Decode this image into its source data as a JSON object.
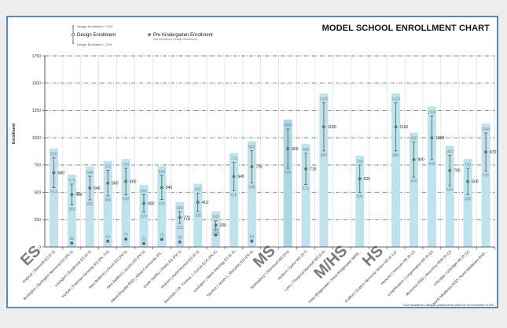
{
  "chart_data": {
    "type": "bar",
    "title": "MODEL SCHOOL ENROLLMENT CHART",
    "ylabel": "Enrollment",
    "xlabel": "",
    "ylim": [
      0,
      1750
    ],
    "yticks": [
      0,
      250,
      500,
      750,
      1000,
      1250,
      1500,
      1750
    ],
    "grid": true,
    "legend": {
      "upper": "Design Enrollment + 20%",
      "design": "Design Enrollment",
      "lower": "Design Enrollment - 20%",
      "prek": "Pre Kindergarten Enrollment",
      "prek_note": "(not included in Design Enrollment)"
    },
    "footnote": "*Core Academic category (classrooms) sized for an enrolment of 900",
    "groups": [
      {
        "label": "ES",
        "schools": [
          {
            "name": "Andover | Bancroft ES (K-5)",
            "design": 680,
            "upper": 816,
            "lower": 544,
            "prek": null
          },
          {
            "name": "Burlington | Burlington Memorial ES (PK-5)",
            "design": 480,
            "upper": 576,
            "lower": 384,
            "prek": 36
          },
          {
            "name": "Lexington | Estabrook ES (K-5)",
            "design": 540,
            "upper": 648,
            "lower": 432,
            "prek": null
          },
          {
            "name": "Norfolk | Freeman Kennedy ES (PK, 3-6)",
            "design": 585,
            "upper": 702,
            "lower": 468,
            "prek": 54
          },
          {
            "name": "New Bedford | Lincoln ES (PK-5)",
            "design": 600,
            "upper": 720,
            "lower": 480,
            "prek": 72
          },
          {
            "name": "New Bedford | Jacobs ES (PK-5)",
            "design": 400,
            "upper": 480,
            "lower": 320,
            "prek": 32
          },
          {
            "name": "Alfred-Rhyolite RSD | Alfred Community ES...",
            "design": 545,
            "upper": 654,
            "lower": 436,
            "prek": 70
          },
          {
            "name": "South Hadley | Plains ES (PK-1)",
            "design": 270,
            "upper": 324,
            "lower": 216,
            "prek": 46
          },
          {
            "name": "Woburn | Hurld-Wyman ES (K-5)",
            "design": 410,
            "upper": 492,
            "lower": 328,
            "prek": null
          },
          {
            "name": "Beckham | Dr. Thomas J. Curran ECC (PK-K)",
            "design": 200,
            "upper": 240,
            "lower": 160,
            "prek": 110
          },
          {
            "name": "Lexington | Maria Hastings ES (K-5)",
            "design": 645,
            "upper": 774,
            "lower": 516,
            "prek": null
          },
          {
            "name": "Taunton | James L. Mulcahey ES (PK-4)",
            "design": 735,
            "upper": 882,
            "lower": 588,
            "prek": 54
          }
        ]
      },
      {
        "label": "MS",
        "schools": [
          {
            "name": "Shrewsbury | Sherwood MS (5-6)",
            "design": 900,
            "upper": 1080,
            "lower": 720,
            "prek": null
          },
          {
            "name": "Hudson | Quinn MS (5-7)",
            "design": 715,
            "upper": 858,
            "lower": 572,
            "prek": null
          },
          {
            "name": "Lynn | Thurgood Marshall MS (6-8)",
            "design": 1100,
            "upper": 1320,
            "lower": 880,
            "prek": null
          }
        ]
      },
      {
        "label": "M/HS",
        "schools": [
          {
            "name": "West Bridgewater | West Bridgewater M/HS...",
            "design": 625,
            "upper": 750,
            "lower": 500,
            "prek": null
          }
        ]
      },
      {
        "label": "HS",
        "schools": [
          {
            "name": "Grafton | Grafton Memorial Senior HS (9-12)*",
            "design": 1100,
            "upper": 1320,
            "lower": 880,
            "prek": null
          },
          {
            "name": "Hanover | Hanover HS (9-12)",
            "design": 800,
            "upper": 960,
            "lower": 640,
            "prek": null
          },
          {
            "name": "Longmeadow | Longmeadow HS (9-12)",
            "design": 1000,
            "upper": 1200,
            "lower": 800,
            "prek": null
          },
          {
            "name": "Monomoy RSD | Monomoy RHS (9-12)",
            "design": 700,
            "upper": 840,
            "lower": 560,
            "prek": null
          },
          {
            "name": "Uxbridge | Uxbridge HS (9-12)",
            "design": 600,
            "upper": 720,
            "lower": 480,
            "prek": null
          },
          {
            "name": "North Middlesex RSD | North Middlesex RHS...",
            "design": 870,
            "upper": 1044,
            "lower": 696,
            "prek": null
          }
        ]
      }
    ]
  },
  "colors": {
    "frame": "#5b87c5",
    "bar": "#bfe3ec",
    "bar_dark": "#a9d8e4",
    "error": "#555555",
    "marker": "#5e8068",
    "prek": "#5b6b73",
    "grid_h": "#555555",
    "grid_v": "#d9d9d9",
    "group_label": "#7a7a7a"
  }
}
